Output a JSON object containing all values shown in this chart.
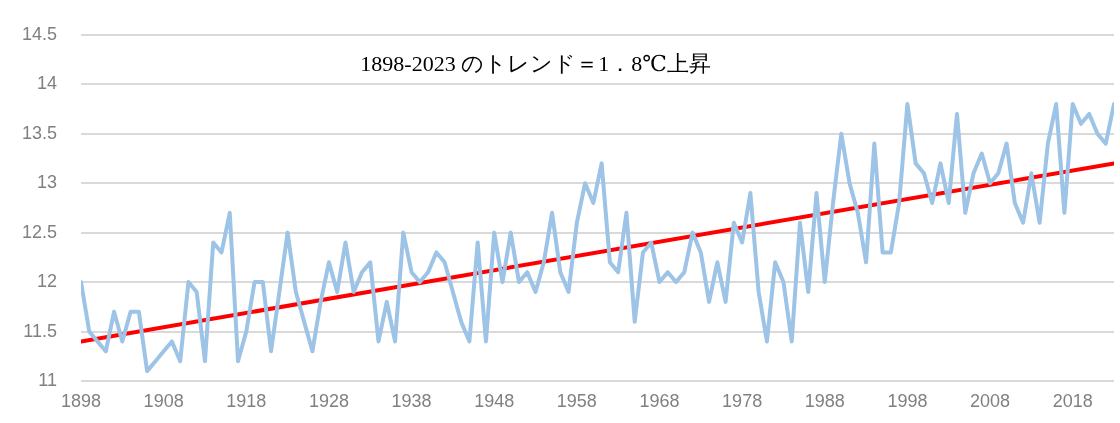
{
  "chart_data": {
    "type": "line",
    "annotations": [
      "1898-2023 のトレンド＝1．8℃上昇"
    ],
    "x": [
      1898,
      1899,
      1900,
      1901,
      1902,
      1903,
      1904,
      1905,
      1906,
      1907,
      1908,
      1909,
      1910,
      1911,
      1912,
      1913,
      1914,
      1915,
      1916,
      1917,
      1918,
      1919,
      1920,
      1921,
      1922,
      1923,
      1924,
      1925,
      1926,
      1927,
      1928,
      1929,
      1930,
      1931,
      1932,
      1933,
      1934,
      1935,
      1936,
      1937,
      1938,
      1939,
      1940,
      1941,
      1942,
      1943,
      1944,
      1945,
      1946,
      1947,
      1948,
      1949,
      1950,
      1951,
      1952,
      1953,
      1954,
      1955,
      1956,
      1957,
      1958,
      1959,
      1960,
      1961,
      1962,
      1963,
      1964,
      1965,
      1966,
      1967,
      1968,
      1969,
      1970,
      1971,
      1972,
      1973,
      1974,
      1975,
      1976,
      1977,
      1978,
      1979,
      1980,
      1981,
      1982,
      1983,
      1984,
      1985,
      1986,
      1987,
      1988,
      1989,
      1990,
      1991,
      1992,
      1993,
      1994,
      1995,
      1996,
      1997,
      1998,
      1999,
      2000,
      2001,
      2002,
      2003,
      2004,
      2005,
      2006,
      2007,
      2008,
      2009,
      2010,
      2011,
      2012,
      2013,
      2014,
      2015,
      2016,
      2017,
      2018,
      2019,
      2020,
      2021,
      2022,
      2023
    ],
    "series": [
      {
        "color": "#9dc3e6",
        "values": [
          12.0,
          11.5,
          11.4,
          11.3,
          11.7,
          11.4,
          11.7,
          11.7,
          11.1,
          11.2,
          11.3,
          11.4,
          11.2,
          12.0,
          11.9,
          11.2,
          12.4,
          12.3,
          12.7,
          11.2,
          11.5,
          12.0,
          12.0,
          11.3,
          11.9,
          12.5,
          11.9,
          11.6,
          11.3,
          11.8,
          12.2,
          11.9,
          12.4,
          11.9,
          12.1,
          12.2,
          11.4,
          11.8,
          11.4,
          12.5,
          12.1,
          12.0,
          12.1,
          12.3,
          12.2,
          11.9,
          11.6,
          11.4,
          12.4,
          11.4,
          12.5,
          12.0,
          12.5,
          12.0,
          12.1,
          11.9,
          12.2,
          12.7,
          12.1,
          11.9,
          12.6,
          13.0,
          12.8,
          13.2,
          12.2,
          12.1,
          12.7,
          11.6,
          12.3,
          12.4,
          12.0,
          12.1,
          12.0,
          12.1,
          12.5,
          12.3,
          11.8,
          12.2,
          11.8,
          12.6,
          12.4,
          12.9,
          11.9,
          11.4,
          12.2,
          12.0,
          11.4,
          12.6,
          11.9,
          12.9,
          12.0,
          12.8,
          13.5,
          13.0,
          12.7,
          12.2,
          13.4,
          12.3,
          12.3,
          12.8,
          13.8,
          13.2,
          13.1,
          12.8,
          13.2,
          12.8,
          13.7,
          12.7,
          13.1,
          13.3,
          13.0,
          13.1,
          13.4,
          12.8,
          12.6,
          13.1,
          12.6,
          13.4,
          13.8,
          12.7,
          13.8,
          13.6,
          13.7,
          13.5,
          13.4,
          13.8
        ]
      },
      {
        "type": "line",
        "color": "#ff0000",
        "x": [
          1898,
          2023
        ],
        "values": [
          11.4,
          13.2
        ]
      }
    ],
    "xlim": [
      1898,
      2023
    ],
    "xticks": [
      1898,
      1908,
      1918,
      1928,
      1938,
      1948,
      1958,
      1968,
      1978,
      1988,
      1998,
      2008,
      2018
    ],
    "ylim": [
      11,
      14.5
    ],
    "yticks": [
      11,
      11.5,
      12,
      12.5,
      13,
      13.5,
      14,
      14.5
    ],
    "grid": "y",
    "legend": false,
    "marker": "none",
    "line_style": "solid"
  }
}
